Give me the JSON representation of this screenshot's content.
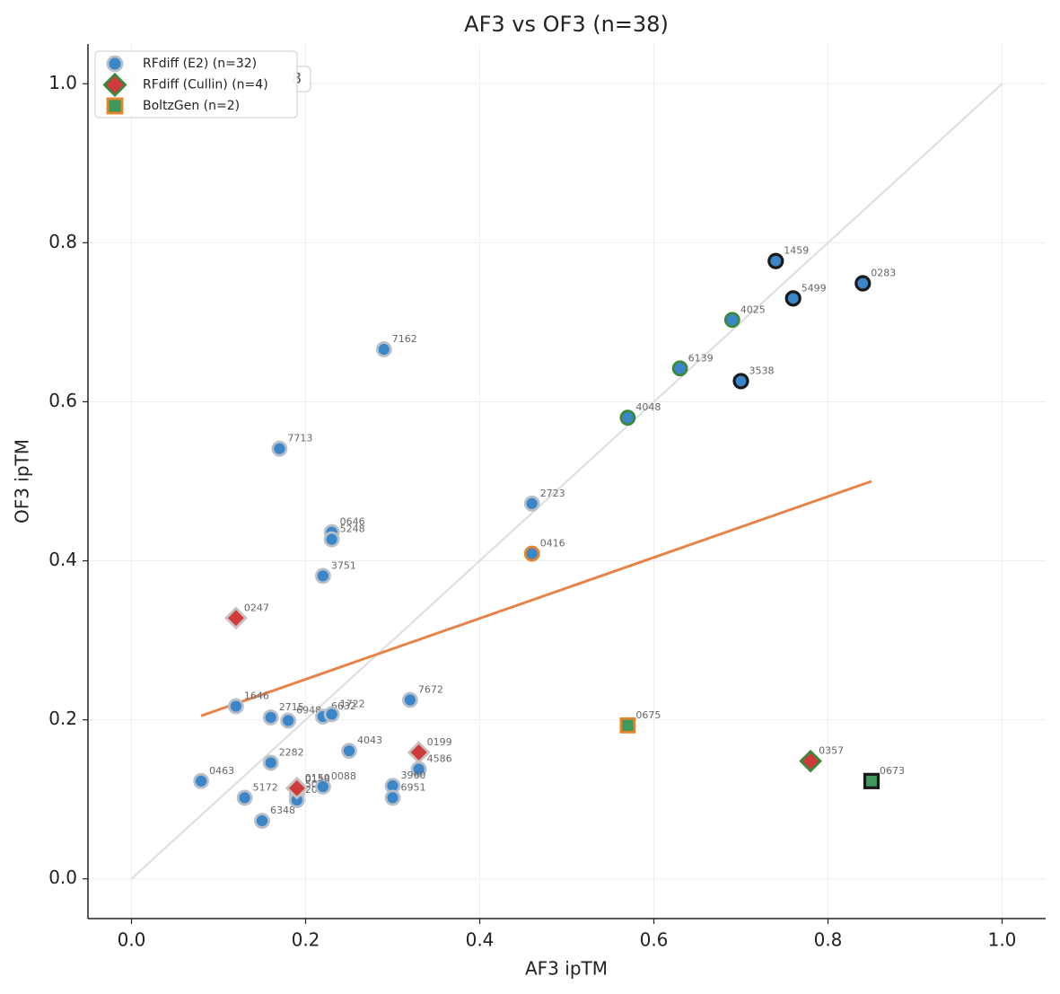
{
  "chart_data": {
    "type": "scatter",
    "title": "AF3 vs OF3 (n=38)",
    "xlabel": "AF3 ipTM",
    "ylabel": "OF3 ipTM",
    "annotation": "8",
    "xlim": [
      -0.05,
      1.05
    ],
    "ylim": [
      -0.05,
      1.05
    ],
    "xticks": [
      {
        "value": 0,
        "label": "0.0"
      },
      0.2,
      0.4,
      0.6,
      0.8,
      {
        "value": 1,
        "label": "1.0"
      }
    ],
    "yticks": [
      {
        "value": 0,
        "label": "0.0"
      },
      0.2,
      0.4,
      0.6,
      0.8,
      {
        "value": 1,
        "label": "1.0"
      }
    ],
    "grid": true,
    "legend": "upper left",
    "diagonal": {
      "x": [
        0,
        1
      ],
      "y": [
        0,
        1
      ],
      "color": "#dddddd"
    },
    "trend": {
      "x": [
        0.08,
        0.85
      ],
      "y": [
        0.205,
        0.5
      ],
      "color": "#e8834a"
    },
    "series": [
      {
        "name": "RFdiff (E2) (n=32)",
        "marker": "circle",
        "color": "#3a86c8",
        "edgecolor": "#b8bfc8",
        "labels": [
          "1459",
          "0283",
          "5499",
          "4025",
          "6139",
          "3538",
          "4048",
          "7162",
          "7713",
          "2723",
          "0646",
          "5248",
          "3751",
          "0416",
          "7672",
          "1646",
          "2715",
          "6948",
          "6632",
          "1722",
          "4043",
          "2282",
          "4586",
          "0463",
          "3960",
          "6951",
          "5172",
          "6348",
          "0158",
          "5018",
          "2013",
          "0088"
        ],
        "x": [
          0.74,
          0.84,
          0.76,
          0.69,
          0.63,
          0.7,
          0.57,
          0.29,
          0.17,
          0.46,
          0.23,
          0.23,
          0.22,
          0.46,
          0.32,
          0.12,
          0.16,
          0.18,
          0.22,
          0.23,
          0.25,
          0.16,
          0.33,
          0.08,
          0.3,
          0.3,
          0.13,
          0.15,
          0.19,
          0.19,
          0.19,
          0.22
        ],
        "values": [
          0.777,
          0.749,
          0.73,
          0.703,
          0.642,
          0.626,
          0.58,
          0.666,
          0.541,
          0.472,
          0.436,
          0.427,
          0.381,
          0.409,
          0.225,
          0.217,
          0.203,
          0.199,
          0.204,
          0.207,
          0.161,
          0.146,
          0.138,
          0.123,
          0.117,
          0.102,
          0.102,
          0.073,
          0.112,
          0.106,
          0.099,
          0.116
        ],
        "edgecolors": [
          "#1a1a1a",
          "#1a1a1a",
          "#1a1a1a",
          "#3a8a3a",
          "#3a8a3a",
          "#1a1a1a",
          "#3a8a3a",
          "#b8bfc8",
          "#b8bfc8",
          "#b8bfc8",
          "#b8bfc8",
          "#b8bfc8",
          "#b8bfc8",
          "#e8832a",
          "#b8bfc8",
          "#b8bfc8",
          "#b8bfc8",
          "#b8bfc8",
          "#b8bfc8",
          "#b8bfc8",
          "#b8bfc8",
          "#b8bfc8",
          "#b8bfc8",
          "#b8bfc8",
          "#b8bfc8",
          "#b8bfc8",
          "#b8bfc8",
          "#b8bfc8",
          "#b8bfc8",
          "#b8bfc8",
          "#b8bfc8",
          "#b8bfc8"
        ]
      },
      {
        "name": "RFdiff (Cullin) (n=4)",
        "marker": "diamond",
        "color": "#d03a3a",
        "edgecolor": "#3a8a3a",
        "labels": [
          "0247",
          "0199",
          "0357",
          "0150"
        ],
        "x": [
          0.12,
          0.33,
          0.78,
          0.19
        ],
        "values": [
          0.328,
          0.159,
          0.148,
          0.114
        ],
        "edgecolors": [
          "#c8c0c0",
          "#c8c0c0",
          "#3a8a3a",
          "#c8c0c0"
        ]
      },
      {
        "name": "BoltzGen (n=2)",
        "marker": "square",
        "color": "#3d9a5a",
        "edgecolor": "#e8832a",
        "labels": [
          "0675",
          "0673"
        ],
        "x": [
          0.57,
          0.85
        ],
        "values": [
          0.193,
          0.123
        ],
        "edgecolors": [
          "#e8832a",
          "#1a1a1a"
        ]
      }
    ]
  }
}
